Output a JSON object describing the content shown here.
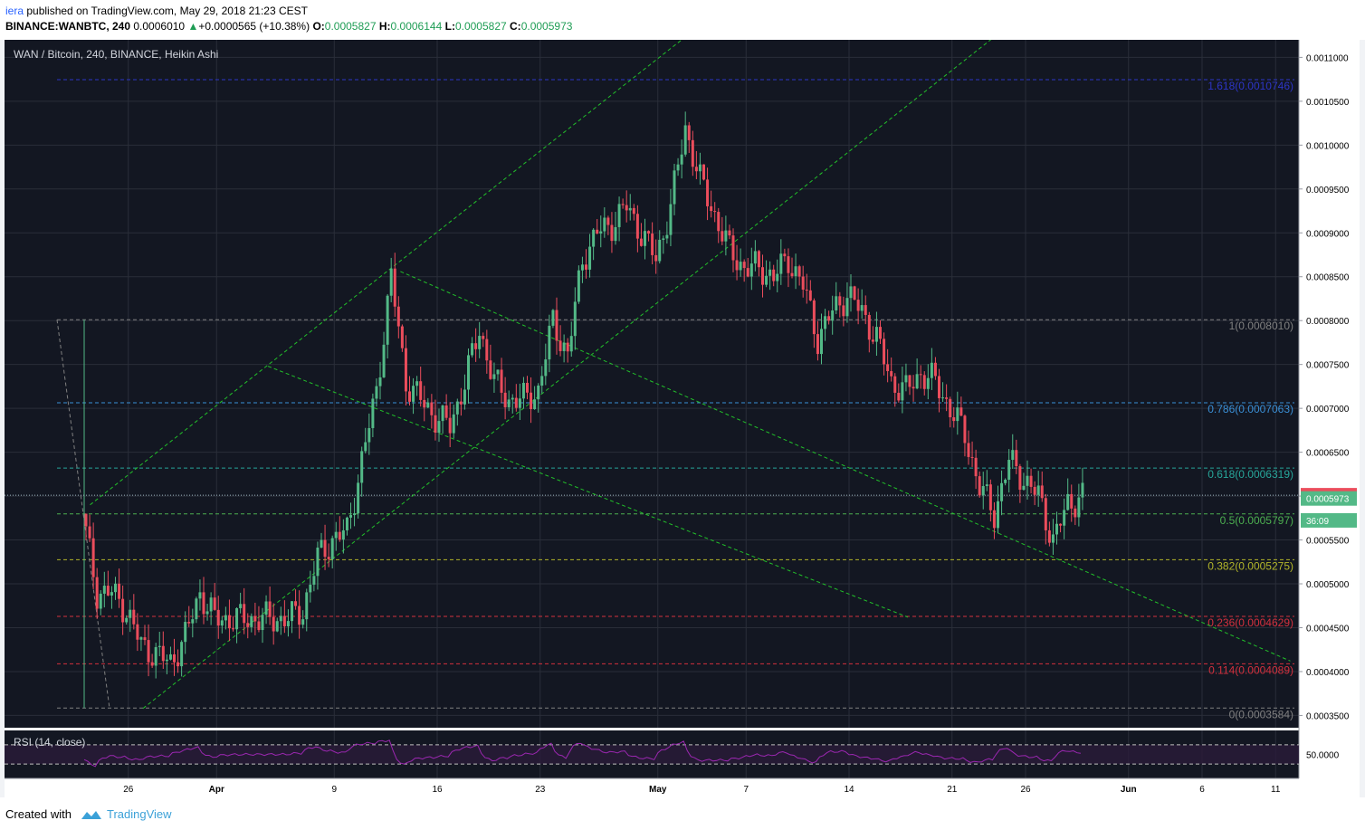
{
  "header": {
    "author": "iera",
    "published": "published on TradingView.com, May 29, 2018 21:23 CEST",
    "symbol": "BINANCE:WANBTC, 240",
    "last": "0.0006010",
    "change": "+0.0000565 (+10.38%)",
    "o_label": "O:",
    "o_value": "0.0005827",
    "h_label": "H:",
    "h_value": "0.0006144",
    "l_label": "L:",
    "l_value": "0.0005827",
    "c_label": "C:",
    "c_value": "0.0005973"
  },
  "footer": {
    "created_with": "Created with",
    "brand": "TradingView"
  },
  "colors": {
    "background": "#131722",
    "grid": "#2a2e39",
    "up": "#53b987",
    "down": "#eb4d5c",
    "trendline": "#22c02a",
    "rsi": "#9b27b0"
  },
  "chart_data": {
    "type": "candlestick",
    "title": "WAN / Bitcoin, 240, BINANCE, Heikin Ashi",
    "xlabel": "",
    "ylabel": "",
    "ylim": [
      0.000336,
      0.00112
    ],
    "grid": true,
    "x_ticks": [
      "26",
      "Apr",
      "9",
      "16",
      "23",
      "May",
      "7",
      "14",
      "21",
      "26",
      "Jun",
      "6",
      "11"
    ],
    "y_ticks": [
      "0.0011000",
      "0.0010500",
      "0.0010000",
      "0.0009500",
      "0.0009000",
      "0.0008500",
      "0.0008000",
      "0.0007500",
      "0.0007000",
      "0.0006500",
      "0.0006000",
      "0.0005500",
      "0.0005000",
      "0.0004500",
      "0.0004000",
      "0.0003500"
    ],
    "price_tags": [
      {
        "label": "0.0006010",
        "value": 0.000601,
        "color": "#eb4d5c"
      },
      {
        "label": "0.0005973",
        "value": 0.0005973,
        "color": "#53b987"
      },
      {
        "label": "36:09",
        "value": 0.0005723,
        "color": "#53b987"
      }
    ],
    "fib_levels": [
      {
        "label": "1.618(0.0010746)",
        "value": 0.0010746,
        "color": "#2d35c6"
      },
      {
        "label": "1(0.0008010)",
        "value": 0.000801,
        "color": "#808080"
      },
      {
        "label": "0.786(0.0007063)",
        "value": 0.0007063,
        "color": "#3a8fd6"
      },
      {
        "label": "0.618(0.0006319)",
        "value": 0.0006319,
        "color": "#27a69a"
      },
      {
        "label": "0.5(0.0005797)",
        "value": 0.0005797,
        "color": "#4caf50"
      },
      {
        "label": "0.382(0.0005275)",
        "value": 0.0005275,
        "color": "#b2b52a"
      },
      {
        "label": "0.236(0.0004629)",
        "value": 0.0004629,
        "color": "#d3303d"
      },
      {
        "label": "0.114(0.0004089)",
        "value": 0.0004089,
        "color": "#d3303d"
      },
      {
        "label": "0(0.0003584)",
        "value": 0.0003584,
        "color": "#808080"
      }
    ],
    "price_series": [
      [
        "Mar 23",
        0.00058
      ],
      [
        "Mar 24",
        0.00049
      ],
      [
        "Mar 25",
        0.00049
      ],
      [
        "Mar 26",
        0.00047
      ],
      [
        "Mar 27",
        0.00043
      ],
      [
        "Mar 28",
        0.00042
      ],
      [
        "Mar 29",
        0.00041
      ],
      [
        "Mar 30",
        0.00044
      ],
      [
        "Mar 31",
        0.00049
      ],
      [
        "Apr 1",
        0.00046
      ],
      [
        "Apr 2",
        0.00046
      ],
      [
        "Apr 3",
        0.00046
      ],
      [
        "Apr 4",
        0.00046
      ],
      [
        "Apr 5",
        0.00046
      ],
      [
        "Apr 6",
        0.00046
      ],
      [
        "Apr 7",
        0.00047
      ],
      [
        "Apr 8",
        0.00053
      ],
      [
        "Apr 9",
        0.00055
      ],
      [
        "Apr 10",
        0.00056
      ],
      [
        "Apr 11",
        0.00064
      ],
      [
        "Apr 12",
        0.00072
      ],
      [
        "Apr 13",
        0.00085
      ],
      [
        "Apr 14",
        0.00073
      ],
      [
        "Apr 15",
        0.00071
      ],
      [
        "Apr 16",
        0.00069
      ],
      [
        "Apr 17",
        0.00068
      ],
      [
        "Apr 18",
        0.00073
      ],
      [
        "Apr 19",
        0.00079
      ],
      [
        "Apr 20",
        0.00073
      ],
      [
        "Apr 21",
        0.00071
      ],
      [
        "Apr 22",
        0.00071
      ],
      [
        "Apr 23",
        0.00072
      ],
      [
        "Apr 24",
        0.0008
      ],
      [
        "Apr 25",
        0.00076
      ],
      [
        "Apr 26",
        0.00087
      ],
      [
        "Apr 27",
        0.0009
      ],
      [
        "Apr 28",
        0.00091
      ],
      [
        "Apr 29",
        0.00093
      ],
      [
        "Apr 30",
        0.0009
      ],
      [
        "May 1",
        0.00087
      ],
      [
        "May 2",
        0.00093
      ],
      [
        "May 3",
        0.00102
      ],
      [
        "May 4",
        0.00096
      ],
      [
        "May 5",
        0.00092
      ],
      [
        "May 6",
        0.00088
      ],
      [
        "May 7",
        0.00086
      ],
      [
        "May 8",
        0.00086
      ],
      [
        "May 9",
        0.00085
      ],
      [
        "May 10",
        0.00087
      ],
      [
        "May 11",
        0.00084
      ],
      [
        "May 12",
        0.00078
      ],
      [
        "May 13",
        0.00081
      ],
      [
        "May 14",
        0.00083
      ],
      [
        "May 15",
        0.00081
      ],
      [
        "May 16",
        0.00078
      ],
      [
        "May 17",
        0.00073
      ],
      [
        "May 18",
        0.00072
      ],
      [
        "May 19",
        0.00074
      ],
      [
        "May 20",
        0.00073
      ],
      [
        "May 21",
        0.0007
      ],
      [
        "May 22",
        0.00067
      ],
      [
        "May 23",
        0.00061
      ],
      [
        "May 24",
        0.00058
      ],
      [
        "May 25",
        0.00064
      ],
      [
        "May 26",
        0.00062
      ],
      [
        "May 27",
        0.0006
      ],
      [
        "May 28",
        0.00055
      ],
      [
        "May 29",
        0.00059
      ],
      [
        "May 29",
        0.000601
      ]
    ],
    "rsi": {
      "label": "RSI (14, close)",
      "value_label": "50.0000",
      "levels": [
        70,
        30
      ]
    }
  }
}
